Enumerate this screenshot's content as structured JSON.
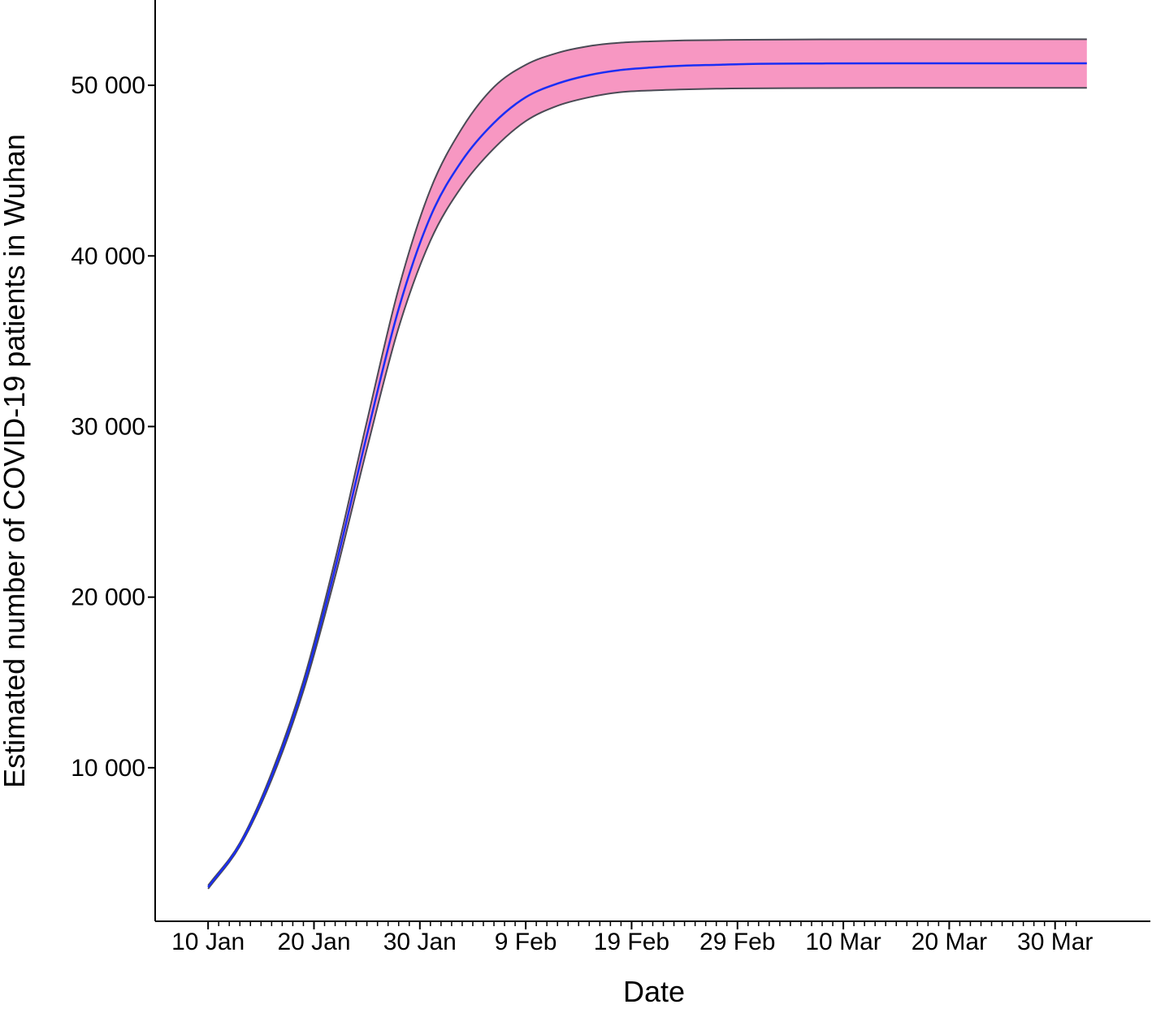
{
  "chart_data": {
    "type": "area",
    "title": "",
    "xlabel": "Date",
    "ylabel": "Estimated number of COVID-19 patients in Wuhan",
    "x_tick_labels": [
      "10 Jan",
      "20 Jan",
      "30 Jan",
      "9 Feb",
      "19 Feb",
      "29 Feb",
      "10 Mar",
      "20 Mar",
      "30 Mar"
    ],
    "y_tick_labels": [
      "10 000",
      "20 000",
      "30 000",
      "40 000",
      "50 000"
    ],
    "x_ticks": [
      "2020-01-10",
      "2020-01-20",
      "2020-01-30",
      "2020-02-09",
      "2020-02-19",
      "2020-02-29",
      "2020-03-10",
      "2020-03-20",
      "2020-03-30"
    ],
    "y_ticks": [
      10000,
      20000,
      30000,
      40000,
      50000
    ],
    "xlim": [
      "2020-01-05",
      "2020-04-08"
    ],
    "ylim": [
      1000,
      55000
    ],
    "x_minor_ticks": "daily",
    "grid": false,
    "colors": {
      "band_fill": "#f797c2",
      "band_edge": "#4a4a55",
      "line": "#1a2ef5",
      "axis": "#000000"
    },
    "series": [
      {
        "role": "estimate",
        "x": [
          "2020-01-10",
          "2020-01-13",
          "2020-01-16",
          "2020-01-19",
          "2020-01-22",
          "2020-01-25",
          "2020-01-28",
          "2020-01-31",
          "2020-02-03",
          "2020-02-06",
          "2020-02-09",
          "2020-02-12",
          "2020-02-15",
          "2020-02-18",
          "2020-02-21",
          "2020-02-24",
          "2020-02-27",
          "2020-03-01",
          "2020-03-08",
          "2020-03-15",
          "2020-03-22",
          "2020-04-02"
        ],
        "values": [
          3000,
          5500,
          9500,
          14800,
          21700,
          29500,
          36900,
          42300,
          45600,
          47800,
          49300,
          50100,
          50600,
          50900,
          51050,
          51150,
          51200,
          51250,
          51280,
          51290,
          51290,
          51290
        ]
      },
      {
        "role": "upper bound",
        "x": [
          "2020-01-10",
          "2020-01-13",
          "2020-01-16",
          "2020-01-19",
          "2020-01-22",
          "2020-01-25",
          "2020-01-28",
          "2020-01-31",
          "2020-02-03",
          "2020-02-06",
          "2020-02-09",
          "2020-02-12",
          "2020-02-15",
          "2020-02-18",
          "2020-02-21",
          "2020-02-24",
          "2020-02-27",
          "2020-03-01",
          "2020-03-08",
          "2020-03-15",
          "2020-03-22",
          "2020-04-02"
        ],
        "values": [
          3100,
          5600,
          9700,
          15100,
          22200,
          30300,
          38100,
          43900,
          47500,
          49900,
          51200,
          51900,
          52300,
          52500,
          52580,
          52630,
          52650,
          52670,
          52690,
          52700,
          52700,
          52700
        ]
      },
      {
        "role": "lower bound",
        "x": [
          "2020-01-10",
          "2020-01-13",
          "2020-01-16",
          "2020-01-19",
          "2020-01-22",
          "2020-01-25",
          "2020-01-28",
          "2020-01-31",
          "2020-02-03",
          "2020-02-06",
          "2020-02-09",
          "2020-02-12",
          "2020-02-15",
          "2020-02-18",
          "2020-02-21",
          "2020-02-24",
          "2020-02-27",
          "2020-03-01",
          "2020-03-08",
          "2020-03-15",
          "2020-03-22",
          "2020-04-02"
        ],
        "values": [
          2900,
          5400,
          9300,
          14500,
          21200,
          28700,
          35800,
          40900,
          44100,
          46300,
          47900,
          48800,
          49300,
          49600,
          49700,
          49760,
          49800,
          49820,
          49840,
          49850,
          49850,
          49850
        ]
      }
    ]
  }
}
